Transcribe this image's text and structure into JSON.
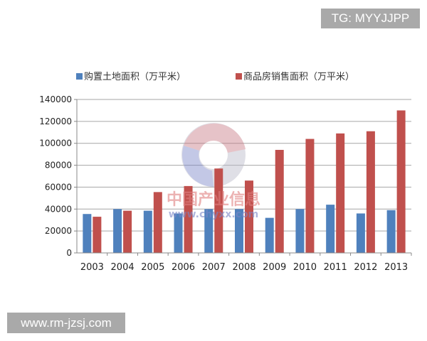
{
  "overlays": {
    "top_badge": "TG: MYYJJPP",
    "bottom_badge": "www.rm-jzsj.com",
    "watermark_cn": "中国产业信息",
    "watermark_url": "www.chyxx.com"
  },
  "chart_data": {
    "type": "bar",
    "title": "",
    "xlabel": "",
    "ylabel": "",
    "categories": [
      "2003",
      "2004",
      "2005",
      "2006",
      "2007",
      "2008",
      "2009",
      "2010",
      "2011",
      "2012",
      "2013"
    ],
    "series": [
      {
        "name": "购置土地面积（万平米）",
        "color": "#4f81bd",
        "values": [
          35500,
          40000,
          38500,
          36000,
          40000,
          40000,
          32000,
          40000,
          44000,
          36000,
          39000
        ]
      },
      {
        "name": "商品房销售面积（万平米）",
        "color": "#c0504d",
        "values": [
          33000,
          38500,
          55500,
          61000,
          77000,
          66000,
          94000,
          104000,
          109000,
          111000,
          130000
        ]
      }
    ],
    "ylim": [
      0,
      140000
    ],
    "yticks": [
      "0",
      "20000",
      "40000",
      "60000",
      "80000",
      "100000",
      "120000",
      "140000"
    ],
    "grid": true,
    "legend": "top"
  }
}
